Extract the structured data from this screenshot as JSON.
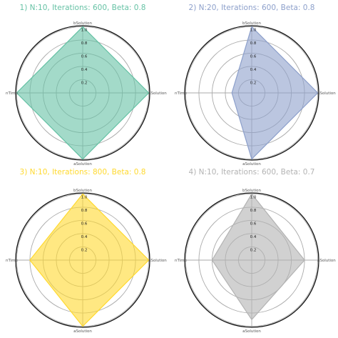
{
  "chart_data": [
    {
      "type": "radar",
      "title": "1) N:10, Iterations: 600, Beta: 0.8",
      "color": "#66c2a5",
      "axes": [
        "bSolution",
        "aSolution",
        "aSolution",
        "nTime"
      ],
      "values": [
        1.0,
        1.0,
        1.0,
        1.0
      ],
      "ticks": [
        "0.2",
        "0.4",
        "0.6",
        "0.8",
        "1.0"
      ],
      "rlim": [
        0,
        1.0
      ]
    },
    {
      "type": "radar",
      "title": "2) N:20, Iterations: 600, Beta: 0.8",
      "color": "#8da0cb",
      "axes": [
        "bSolution",
        "aSolution",
        "aSolution",
        "nTime"
      ],
      "values": [
        1.0,
        1.0,
        1.0,
        0.3
      ],
      "ticks": [
        "0.2",
        "0.4",
        "0.6",
        "0.8",
        "1.0"
      ],
      "rlim": [
        0,
        1.0
      ]
    },
    {
      "type": "radar",
      "title": "3) N:10, Iterations: 800, Beta: 0.8",
      "color": "#ffd92f",
      "axes": [
        "bSolution",
        "aSolution",
        "aSolution",
        "nTime"
      ],
      "values": [
        1.0,
        1.0,
        1.0,
        0.8
      ],
      "ticks": [
        "0.2",
        "0.4",
        "0.6",
        "0.8",
        "1.0"
      ],
      "rlim": [
        0,
        1.0
      ]
    },
    {
      "type": "radar",
      "title": "4) N:10, Iterations: 600, Beta: 0.7",
      "color": "#b3b3b3",
      "axes": [
        "bSolution",
        "aSolution",
        "aSolution",
        "nTime"
      ],
      "values": [
        1.0,
        0.8,
        0.9,
        0.6
      ],
      "ticks": [
        "0.2",
        "0.4",
        "0.6",
        "0.8",
        "1.0"
      ],
      "rlim": [
        0,
        1.0
      ]
    }
  ]
}
